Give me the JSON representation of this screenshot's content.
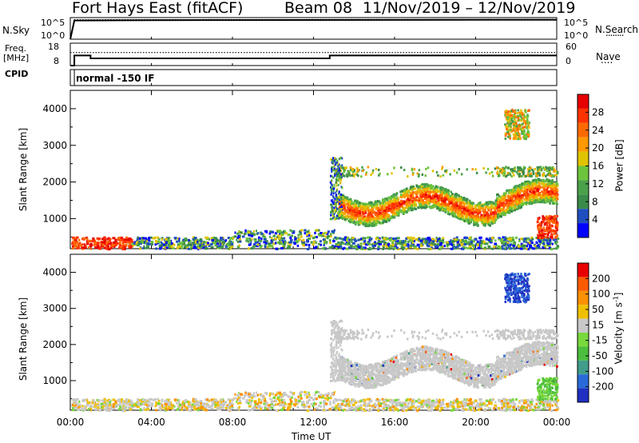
{
  "header": {
    "title": "Fort Hays East (fitACF)",
    "beam": "Beam 08",
    "date_range": "11/Nov/2019 – 12/Nov/2019"
  },
  "sky_panel": {
    "label": "N.Sky",
    "tick_top": "10^5",
    "tick_bottom": "10^0",
    "right_label": "N.Search",
    "right_tick_top": "10^5",
    "right_tick_bottom": "10^0",
    "legend_dots": "........"
  },
  "freq_panel": {
    "label_line1": "Freq.",
    "label_line2": "[MHz]",
    "tick_top": "18",
    "tick_bottom": "8",
    "right_label": "Nave",
    "right_tick_top": "60",
    "right_tick_bottom": "0",
    "legend_dots": "...."
  },
  "cpid_panel": {
    "label": "CPID",
    "mode": "normal -150 IF"
  },
  "axes": {
    "ylabel": "Slant Range [km]",
    "yticks": [
      "1000",
      "2000",
      "3000",
      "4000"
    ],
    "xticks": [
      "00:00",
      "04:00",
      "08:00",
      "12:00",
      "16:00",
      "20:00",
      "00:00"
    ],
    "xlabel": "Time UT"
  },
  "power_colorbar": {
    "label": "Power [dB]",
    "ticks": [
      "4",
      "8",
      "12",
      "16",
      "20",
      "24",
      "28"
    ],
    "colors": [
      "#0000ff",
      "#1f4fbf",
      "#3a8a4a",
      "#4aa14a",
      "#6cc33c",
      "#e0c300",
      "#ff9900",
      "#ff6a00",
      "#ff3300",
      "#e60000"
    ]
  },
  "velocity_colorbar": {
    "label": "Velocity [m s^-1]",
    "ticks": [
      "200",
      "100",
      "50",
      "15",
      "-15",
      "-50",
      "-100",
      "-200"
    ],
    "colors": [
      "#2030c0",
      "#2a6ad8",
      "#3f9d8a",
      "#4cbe3e",
      "#78d83c",
      "#c8c8c8",
      "#f0c000",
      "#ff9000",
      "#ff5a00",
      "#e80000"
    ]
  },
  "chart_data": [
    {
      "type": "line",
      "title": "Fort Hays East (fitACF)",
      "xlabel": "",
      "ylabel": "N.Sky",
      "x": [
        0,
        0.2,
        4,
        8,
        12,
        16,
        20,
        23,
        24
      ],
      "series": [
        {
          "name": "N.Sky",
          "values": [
            1,
            40000,
            45000,
            50000,
            52000,
            55000,
            57000,
            58000,
            58000
          ]
        },
        {
          "name": "N.Search",
          "values": [
            1,
            60000,
            62000,
            64000,
            66000,
            70000,
            72000,
            73000,
            73000
          ]
        }
      ],
      "ylim_label": [
        "10^0",
        "10^5"
      ]
    },
    {
      "type": "line",
      "ylabel": "Freq. [MHz]",
      "x": [
        0,
        0.2,
        1,
        12.8,
        24
      ],
      "series": [
        {
          "name": "Freq.",
          "values": [
            8,
            12.5,
            11.2,
            12.5,
            12.5
          ]
        },
        {
          "name": "Nave",
          "values": [
            35,
            35,
            35,
            35,
            35
          ]
        }
      ],
      "ylim": [
        8,
        18
      ],
      "ylim_right": [
        0,
        60
      ]
    },
    {
      "type": "heatmap",
      "title": "Power",
      "xlabel": "Time UT",
      "ylabel": "Slant Range [km]",
      "xlim": [
        0,
        24
      ],
      "ylim": [
        180,
        4500
      ],
      "colorbar_ticks": [
        4,
        8,
        12,
        16,
        20,
        24,
        28
      ],
      "regions": [
        {
          "label": "near-range band",
          "t": [
            0,
            24
          ],
          "range_km": [
            180,
            500
          ],
          "power_db": [
            6,
            22
          ]
        },
        {
          "label": "main F-region echo",
          "t": [
            13.2,
            24
          ],
          "range_km": [
            800,
            1900
          ],
          "power_db": [
            14,
            30
          ]
        },
        {
          "label": "upper band",
          "t": [
            13,
            24
          ],
          "range_km": [
            2150,
            2450
          ],
          "power_db": [
            8,
            20
          ]
        },
        {
          "label": "far-range patch",
          "t": [
            21.4,
            22.6
          ],
          "range_km": [
            3200,
            4000
          ],
          "power_db": [
            12,
            24
          ]
        }
      ]
    },
    {
      "type": "heatmap",
      "title": "Velocity",
      "xlabel": "Time UT",
      "ylabel": "Slant Range [km]",
      "xlim": [
        0,
        24
      ],
      "ylim": [
        180,
        4500
      ],
      "colorbar_ticks": [
        -200,
        -100,
        -50,
        -15,
        15,
        50,
        100,
        200
      ],
      "regions": [
        {
          "label": "near-range band",
          "t": [
            0,
            24
          ],
          "range_km": [
            180,
            500
          ],
          "velocity": [
            -50,
            50
          ]
        },
        {
          "label": "main F-region echo",
          "t": [
            13.2,
            24
          ],
          "range_km": [
            800,
            1900
          ],
          "velocity": [
            -15,
            15
          ]
        },
        {
          "label": "upper band",
          "t": [
            13,
            24
          ],
          "range_km": [
            2150,
            2450
          ],
          "velocity": [
            -15,
            15
          ]
        },
        {
          "label": "far-range patch",
          "t": [
            21.4,
            22.6
          ],
          "range_km": [
            3200,
            4000
          ],
          "velocity": [
            100,
            250
          ]
        }
      ]
    }
  ]
}
